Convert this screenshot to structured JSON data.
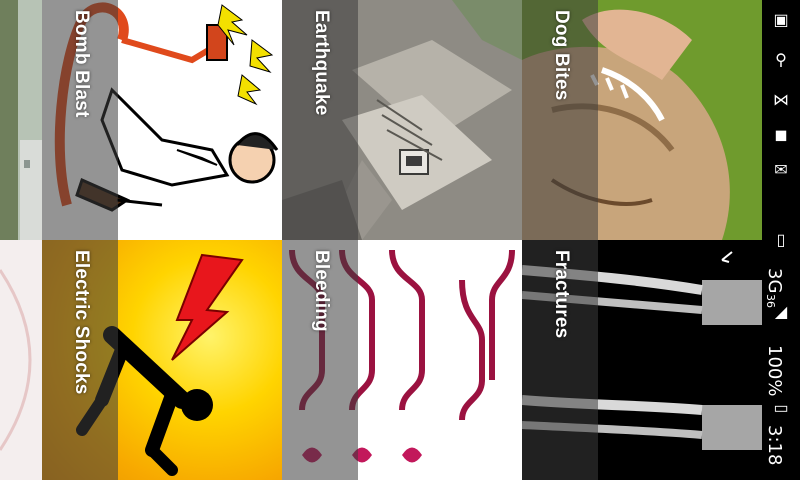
{
  "tiles": [
    {
      "id": "bomb",
      "label": "Bomb Blast"
    },
    {
      "id": "earthquake",
      "label": "Earthquake"
    },
    {
      "id": "dog",
      "label": "Dog Bites"
    },
    {
      "id": "electric",
      "label": "Electric Shocks"
    },
    {
      "id": "bleeding",
      "label": "Bleeding"
    },
    {
      "id": "fractures",
      "label": "Fractures"
    }
  ],
  "status_bar": {
    "network": "3G",
    "signal_sup": "36",
    "battery": "100%",
    "time": "3:18"
  },
  "colors": {
    "overlay": "#3c3c3c",
    "electric_yellow": "#ffd400",
    "bolt_red": "#e8161c",
    "bleeding_maroon": "#9b1240"
  }
}
